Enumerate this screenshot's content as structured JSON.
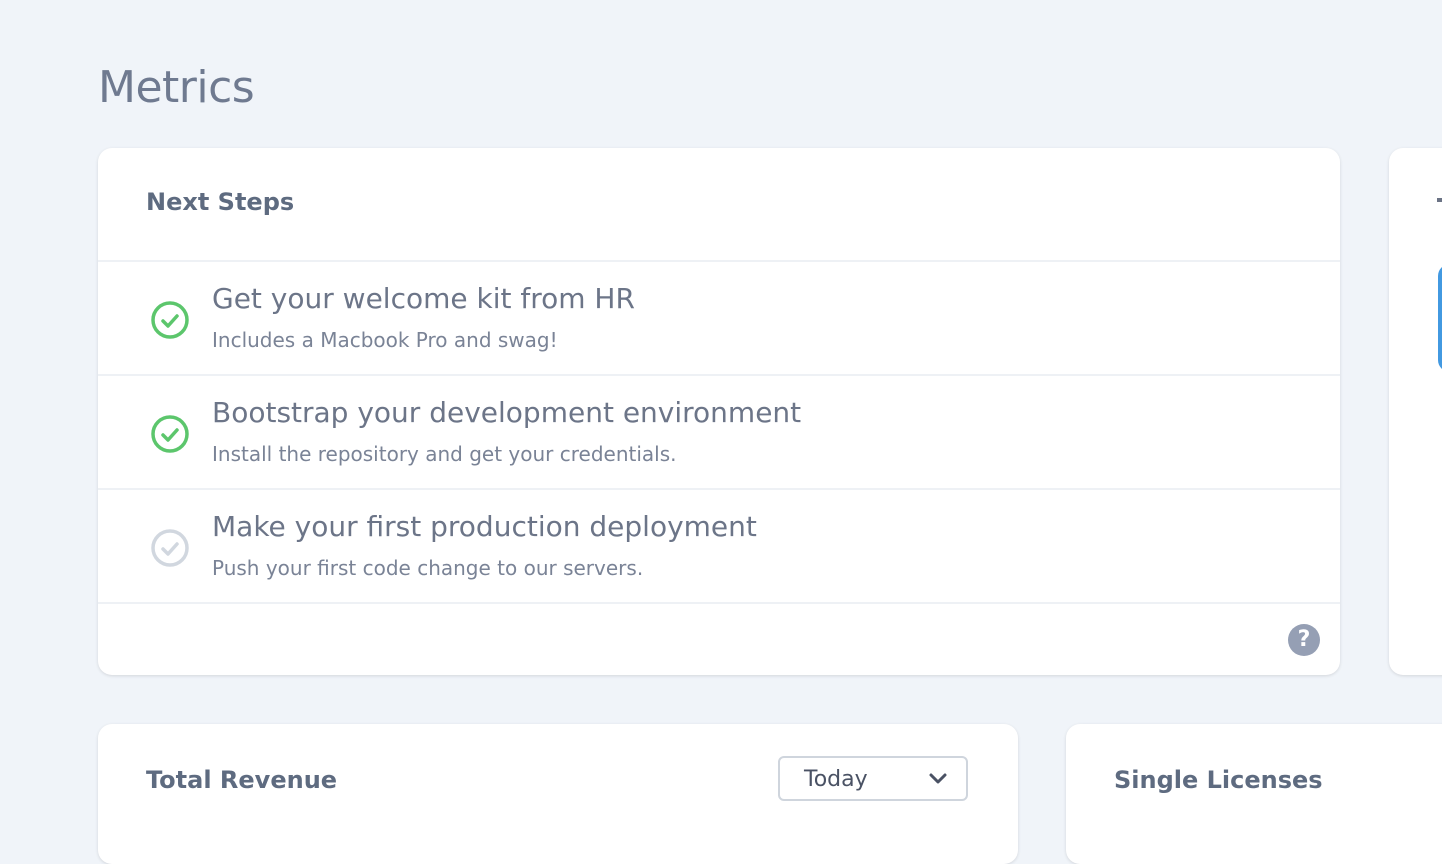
{
  "page_title": "Metrics",
  "next_steps": {
    "title": "Next Steps",
    "items": [
      {
        "title": "Get your welcome kit from HR",
        "subtitle": "Includes a Macbook Pro and swag!",
        "completed": true
      },
      {
        "title": "Bootstrap your development environment",
        "subtitle": "Install the repository and get your credentials.",
        "completed": true
      },
      {
        "title": "Make your first production deployment",
        "subtitle": "Push your first code change to our servers.",
        "completed": false
      }
    ],
    "help_label": "?"
  },
  "total_revenue": {
    "title": "Total Revenue",
    "range_selected": "Today"
  },
  "single_licenses": {
    "title": "Single Licenses"
  },
  "colors": {
    "complete": "#5cc66c",
    "incomplete": "#d1d7df",
    "accent": "#4299e1"
  }
}
